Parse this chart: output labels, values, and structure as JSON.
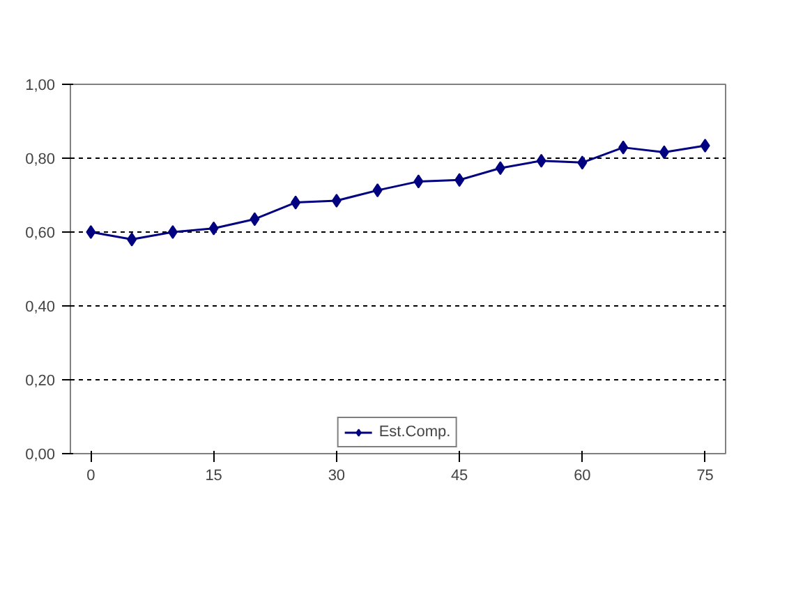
{
  "chart_data": {
    "type": "line",
    "x": [
      0,
      5,
      10,
      15,
      20,
      25,
      30,
      35,
      40,
      45,
      50,
      55,
      60,
      65,
      70,
      75
    ],
    "series": [
      {
        "name": "Est.Comp.",
        "color": "#000080",
        "values": [
          0.6,
          0.58,
          0.6,
          0.61,
          0.635,
          0.68,
          0.685,
          0.713,
          0.737,
          0.741,
          0.773,
          0.793,
          0.788,
          0.829,
          0.816,
          0.834
        ]
      }
    ],
    "xlim": [
      -2.5,
      77.5
    ],
    "xticks": [
      0,
      15,
      30,
      45,
      60,
      75
    ],
    "ylim": [
      0,
      1
    ],
    "yticks": [
      {
        "value": 0,
        "label": "0,00"
      },
      {
        "value": 0.2,
        "label": "0,20"
      },
      {
        "value": 0.4,
        "label": "0,40"
      },
      {
        "value": 0.6,
        "label": "0,60"
      },
      {
        "value": 0.8,
        "label": "0,80"
      },
      {
        "value": 1,
        "label": "1,00"
      }
    ],
    "grid": "y",
    "legend": "bottom",
    "marker": "diamond",
    "line_style": "solid"
  }
}
